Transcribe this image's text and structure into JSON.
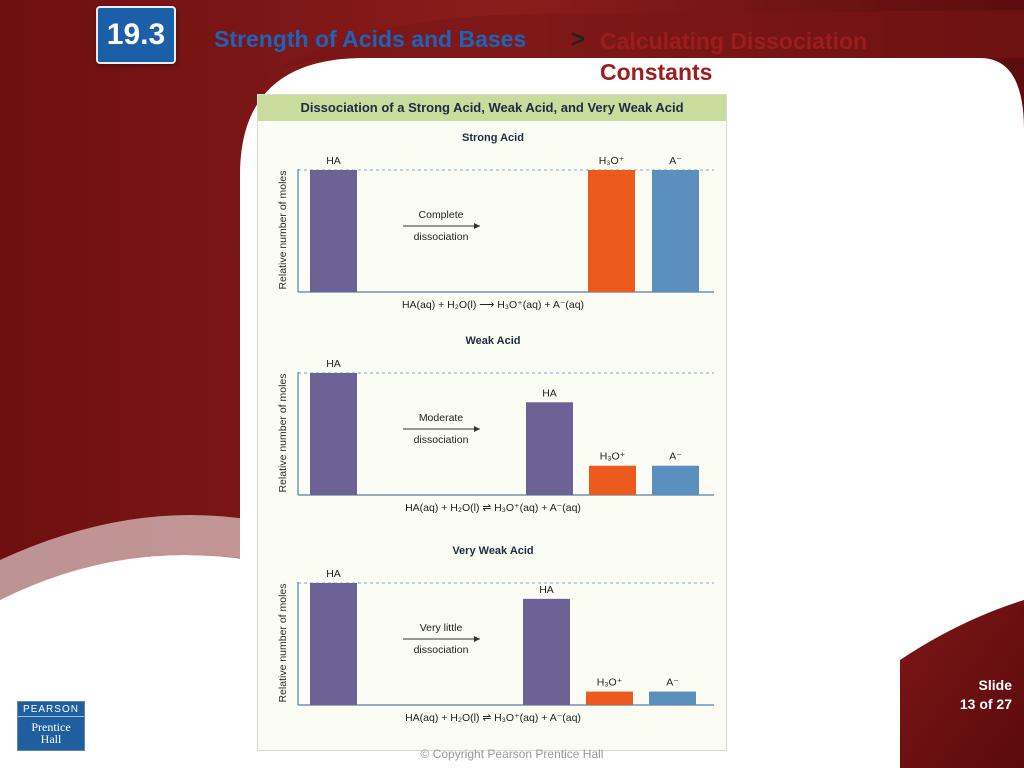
{
  "header": {
    "section_number": "19.3",
    "title_left": "Strength of Acids and Bases",
    "arrow": ">",
    "title_right_line1": "Calculating Dissociation",
    "title_right_line2": "Constants"
  },
  "figure": {
    "title": "Dissociation of a Strong Acid, Weak Acid, and Very Weak Acid",
    "y_axis_label": "Relative number of moles",
    "colors": {
      "HA": "#6d6296",
      "H3O+": "#ec5b1d",
      "A-": "#5b8fbe",
      "header": "#c8dd9c"
    },
    "panels": [
      {
        "title": "Strong Acid",
        "process_line1": "Complete",
        "process_line2": "dissociation",
        "reactant": {
          "label": "HA",
          "value": 1.0
        },
        "products": [
          {
            "label": "H₃O⁺",
            "species": "H3O+",
            "value": 1.0
          },
          {
            "label": "A⁻",
            "species": "A-",
            "value": 1.0
          }
        ],
        "equation": "HA(aq) + H₂O(l) ⟶ H₃O⁺(aq) + A⁻(aq)"
      },
      {
        "title": "Weak Acid",
        "process_line1": "Moderate",
        "process_line2": "dissociation",
        "reactant": {
          "label": "HA",
          "value": 1.0
        },
        "products": [
          {
            "label": "HA",
            "species": "HA",
            "value": 0.76
          },
          {
            "label": "H₃O⁺",
            "species": "H3O+",
            "value": 0.24
          },
          {
            "label": "A⁻",
            "species": "A-",
            "value": 0.24
          }
        ],
        "equation": "HA(aq) + H₂O(l) ⇌ H₃O⁺(aq) + A⁻(aq)"
      },
      {
        "title": "Very Weak Acid",
        "process_line1": "Very little",
        "process_line2": "dissociation",
        "reactant": {
          "label": "HA",
          "value": 1.0
        },
        "products": [
          {
            "label": "HA",
            "species": "HA",
            "value": 0.87
          },
          {
            "label": "H₃O⁺",
            "species": "H3O+",
            "value": 0.11
          },
          {
            "label": "A⁻",
            "species": "A-",
            "value": 0.11
          }
        ],
        "equation": "HA(aq) + H₂O(l) ⇌ H₃O⁺(aq) + A⁻(aq)"
      }
    ]
  },
  "footer": {
    "slide_label": "Slide",
    "slide_position": "13 of 27",
    "copyright": "© Copyright Pearson Prentice Hall",
    "logo_top": "PEARSON",
    "logo_line1": "Prentice",
    "logo_line2": "Hall"
  }
}
